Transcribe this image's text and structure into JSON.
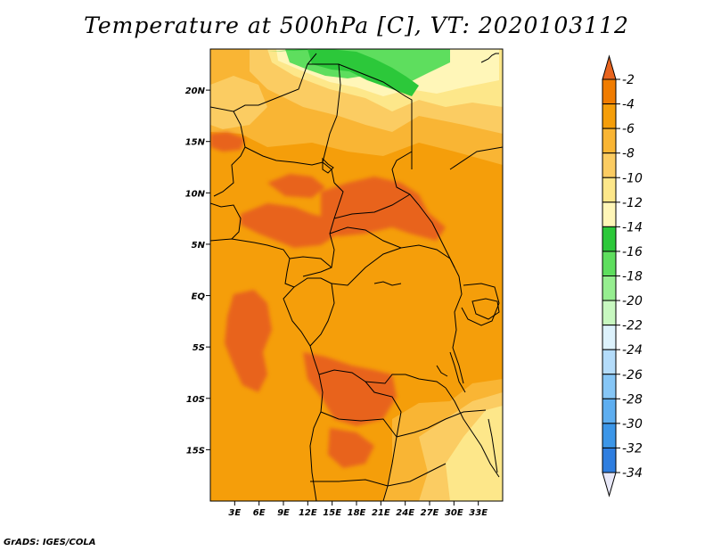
{
  "title": "Temperature at 500hPa [C], VT: 2020103112",
  "credit": "GrADS: IGES/COLA",
  "map": {
    "lon_range": [
      0,
      36
    ],
    "lat_range": [
      -20,
      24
    ],
    "lat_ticks": [
      {
        "lat": 20,
        "label": "20N"
      },
      {
        "lat": 15,
        "label": "15N"
      },
      {
        "lat": 10,
        "label": "10N"
      },
      {
        "lat": 5,
        "label": "5N"
      },
      {
        "lat": 0,
        "label": "EQ"
      },
      {
        "lat": -5,
        "label": "5S"
      },
      {
        "lat": -10,
        "label": "10S"
      },
      {
        "lat": -15,
        "label": "15S"
      }
    ],
    "lon_ticks": [
      {
        "lon": 3,
        "label": "3E"
      },
      {
        "lon": 6,
        "label": "6E"
      },
      {
        "lon": 9,
        "label": "9E"
      },
      {
        "lon": 12,
        "label": "12E"
      },
      {
        "lon": 15,
        "label": "15E"
      },
      {
        "lon": 18,
        "label": "18E"
      },
      {
        "lon": 21,
        "label": "21E"
      },
      {
        "lon": 24,
        "label": "24E"
      },
      {
        "lon": 27,
        "label": "27E"
      },
      {
        "lon": 30,
        "label": "30E"
      },
      {
        "lon": 33,
        "label": "33E"
      }
    ]
  },
  "colorbar": {
    "colors": [
      "#e8e8f8",
      "#000080",
      "#1040b0",
      "#1e60d0",
      "#2e7ee0",
      "#3c96e8",
      "#5eaef0",
      "#86c6f6",
      "#b4dcfa",
      "#ddf2fc",
      "#c8f8c0",
      "#96ee90",
      "#5ede5e",
      "#2cc83a",
      "#fff6b8",
      "#fde78a",
      "#fbcc62",
      "#f9b534",
      "#f59e0a",
      "#f07c00",
      "#e85412",
      "#e8641e"
    ],
    "labels": [
      "-2",
      "-4",
      "-6",
      "-8",
      "-10",
      "-12",
      "-14",
      "-16",
      "-18",
      "-20",
      "-22",
      "-24",
      "-26",
      "-28",
      "-30",
      "-32",
      "-34"
    ]
  },
  "fill_colors": {
    "deep_orange": "#e8641e",
    "orange": "#f59e0a",
    "light_orange": "#f9b534",
    "pale_orange": "#fbcc62",
    "yellow": "#fde78a",
    "pale_yellow": "#fff6b8",
    "green": "#2cc83a",
    "light_green": "#5ede5e"
  }
}
